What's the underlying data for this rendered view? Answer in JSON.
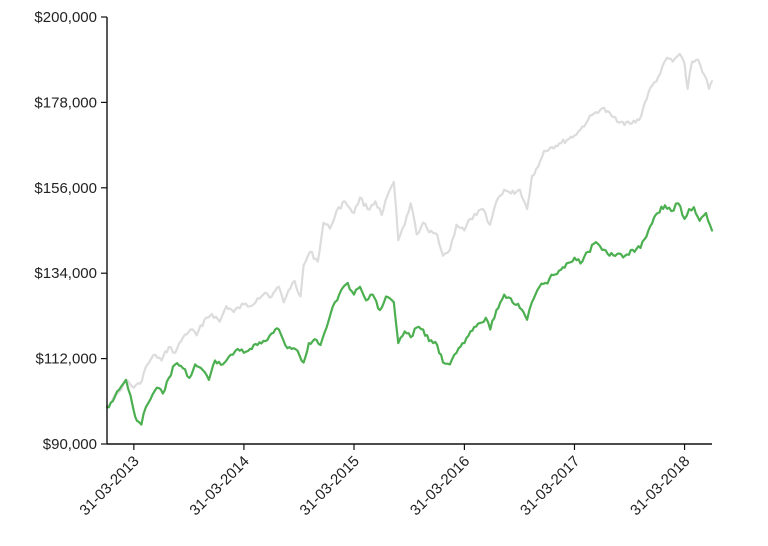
{
  "chart_data": {
    "type": "line",
    "title": "",
    "xlabel": "",
    "ylabel": "",
    "ylim": [
      90000,
      200000
    ],
    "xlim": [
      "2013-01-01",
      "2018-06-30"
    ],
    "grid": false,
    "legend": "none",
    "y_ticks": [
      {
        "value": 90000,
        "label": "$90,000"
      },
      {
        "value": 112000,
        "label": "$112,000"
      },
      {
        "value": 134000,
        "label": "$134,000"
      },
      {
        "value": 156000,
        "label": "$156,000"
      },
      {
        "value": 178000,
        "label": "$178,000"
      },
      {
        "value": 200000,
        "label": "$200,000"
      }
    ],
    "x_ticks": [
      {
        "value": "2013-03-31",
        "label": "31-03-2013"
      },
      {
        "value": "2014-03-31",
        "label": "31-03-2014"
      },
      {
        "value": "2015-03-31",
        "label": "31-03-2015"
      },
      {
        "value": "2016-03-31",
        "label": "31-03-2016"
      },
      {
        "value": "2017-03-31",
        "label": "31-03-2017"
      },
      {
        "value": "2018-03-31",
        "label": "31-03-2018"
      }
    ],
    "series": [
      {
        "color": "#dcdcdc",
        "points": [
          [
            "2013-01-01",
            100000
          ],
          [
            "2013-01-20",
            101500
          ],
          [
            "2013-02-10",
            103500
          ],
          [
            "2013-03-05",
            106500
          ],
          [
            "2013-03-31",
            104500
          ],
          [
            "2013-04-20",
            105500
          ],
          [
            "2013-05-15",
            110500
          ],
          [
            "2013-06-10",
            113000
          ],
          [
            "2013-07-01",
            111500
          ],
          [
            "2013-07-25",
            115000
          ],
          [
            "2013-08-15",
            113500
          ],
          [
            "2013-09-10",
            117500
          ],
          [
            "2013-10-05",
            119500
          ],
          [
            "2013-10-25",
            118000
          ],
          [
            "2013-11-20",
            122000
          ],
          [
            "2013-12-15",
            123500
          ],
          [
            "2014-01-10",
            121500
          ],
          [
            "2014-02-01",
            125500
          ],
          [
            "2014-02-25",
            124000
          ],
          [
            "2014-03-31",
            126000
          ],
          [
            "2014-04-20",
            125500
          ],
          [
            "2014-05-15",
            127500
          ],
          [
            "2014-06-10",
            129000
          ],
          [
            "2014-07-01",
            128000
          ],
          [
            "2014-07-25",
            130500
          ],
          [
            "2014-08-10",
            126500
          ],
          [
            "2014-08-25",
            129500
          ],
          [
            "2014-09-15",
            132000
          ],
          [
            "2014-10-05",
            128000
          ],
          [
            "2014-10-15",
            136000
          ],
          [
            "2014-11-05",
            139500
          ],
          [
            "2014-12-01",
            137000
          ],
          [
            "2014-12-20",
            147000
          ],
          [
            "2015-01-10",
            145500
          ],
          [
            "2015-02-01",
            150000
          ],
          [
            "2015-03-01",
            152500
          ],
          [
            "2015-03-31",
            149500
          ],
          [
            "2015-04-20",
            153500
          ],
          [
            "2015-05-15",
            150500
          ],
          [
            "2015-06-10",
            152500
          ],
          [
            "2015-07-01",
            149000
          ],
          [
            "2015-07-25",
            155000
          ],
          [
            "2015-08-10",
            157500
          ],
          [
            "2015-08-25",
            142500
          ],
          [
            "2015-09-15",
            146500
          ],
          [
            "2015-10-05",
            152000
          ],
          [
            "2015-10-25",
            144000
          ],
          [
            "2015-11-15",
            147000
          ],
          [
            "2015-12-05",
            144500
          ],
          [
            "2016-01-01",
            144000
          ],
          [
            "2016-01-20",
            138500
          ],
          [
            "2016-02-12",
            140000
          ],
          [
            "2016-03-05",
            146500
          ],
          [
            "2016-03-31",
            145000
          ],
          [
            "2016-04-20",
            148000
          ],
          [
            "2016-05-10",
            149000
          ],
          [
            "2016-06-01",
            150500
          ],
          [
            "2016-06-24",
            146500
          ],
          [
            "2016-07-15",
            152500
          ],
          [
            "2016-08-10",
            155500
          ],
          [
            "2016-09-01",
            154500
          ],
          [
            "2016-10-01",
            155500
          ],
          [
            "2016-10-25",
            150500
          ],
          [
            "2016-11-10",
            159000
          ],
          [
            "2016-12-01",
            161500
          ],
          [
            "2016-12-20",
            165500
          ],
          [
            "2017-01-15",
            166500
          ],
          [
            "2017-02-15",
            167500
          ],
          [
            "2017-03-31",
            169500
          ],
          [
            "2017-04-20",
            171000
          ],
          [
            "2017-05-15",
            173500
          ],
          [
            "2017-06-10",
            175500
          ],
          [
            "2017-07-01",
            176500
          ],
          [
            "2017-08-01",
            174500
          ],
          [
            "2017-09-01",
            173000
          ],
          [
            "2017-10-01",
            172500
          ],
          [
            "2017-11-01",
            173500
          ],
          [
            "2017-12-01",
            180500
          ],
          [
            "2018-01-10",
            185500
          ],
          [
            "2018-02-01",
            189500
          ],
          [
            "2018-02-20",
            188500
          ],
          [
            "2018-03-15",
            190500
          ],
          [
            "2018-03-31",
            188000
          ],
          [
            "2018-04-10",
            181500
          ],
          [
            "2018-04-25",
            188500
          ],
          [
            "2018-05-15",
            189000
          ],
          [
            "2018-06-05",
            185000
          ],
          [
            "2018-06-20",
            181500
          ],
          [
            "2018-06-30",
            183500
          ]
        ]
      },
      {
        "color": "#4caf50",
        "points": [
          [
            "2013-01-01",
            99500
          ],
          [
            "2013-01-20",
            101000
          ],
          [
            "2013-02-10",
            104000
          ],
          [
            "2013-03-05",
            106500
          ],
          [
            "2013-03-20",
            102500
          ],
          [
            "2013-03-31",
            98500
          ],
          [
            "2013-04-10",
            96000
          ],
          [
            "2013-04-25",
            95000
          ],
          [
            "2013-05-10",
            99500
          ],
          [
            "2013-05-25",
            101500
          ],
          [
            "2013-06-15",
            104500
          ],
          [
            "2013-07-05",
            103000
          ],
          [
            "2013-07-25",
            107000
          ],
          [
            "2013-08-15",
            110500
          ],
          [
            "2013-09-10",
            109500
          ],
          [
            "2013-10-01",
            107000
          ],
          [
            "2013-10-20",
            110500
          ],
          [
            "2013-11-15",
            109000
          ],
          [
            "2013-12-05",
            106500
          ],
          [
            "2013-12-25",
            111500
          ],
          [
            "2014-01-20",
            110500
          ],
          [
            "2014-02-15",
            113000
          ],
          [
            "2014-03-10",
            114500
          ],
          [
            "2014-03-31",
            113500
          ],
          [
            "2014-04-20",
            114500
          ],
          [
            "2014-05-15",
            115500
          ],
          [
            "2014-06-10",
            116500
          ],
          [
            "2014-07-01",
            118500
          ],
          [
            "2014-07-25",
            119500
          ],
          [
            "2014-08-15",
            115500
          ],
          [
            "2014-09-05",
            114500
          ],
          [
            "2014-09-25",
            114000
          ],
          [
            "2014-10-15",
            111000
          ],
          [
            "2014-11-01",
            116000
          ],
          [
            "2014-11-20",
            117000
          ],
          [
            "2014-12-10",
            115500
          ],
          [
            "2014-12-30",
            120000
          ],
          [
            "2015-01-20",
            125500
          ],
          [
            "2015-02-10",
            128500
          ],
          [
            "2015-03-10",
            131500
          ],
          [
            "2015-03-31",
            128500
          ],
          [
            "2015-04-20",
            130500
          ],
          [
            "2015-05-10",
            127000
          ],
          [
            "2015-06-01",
            128500
          ],
          [
            "2015-06-25",
            124500
          ],
          [
            "2015-07-15",
            128000
          ],
          [
            "2015-08-10",
            126500
          ],
          [
            "2015-08-25",
            116000
          ],
          [
            "2015-09-15",
            119000
          ],
          [
            "2015-10-05",
            117500
          ],
          [
            "2015-10-25",
            120000
          ],
          [
            "2015-11-15",
            119500
          ],
          [
            "2015-12-05",
            116500
          ],
          [
            "2016-01-01",
            115500
          ],
          [
            "2016-01-20",
            111000
          ],
          [
            "2016-02-12",
            110500
          ],
          [
            "2016-03-05",
            113500
          ],
          [
            "2016-03-31",
            116000
          ],
          [
            "2016-04-20",
            119000
          ],
          [
            "2016-05-15",
            121000
          ],
          [
            "2016-06-10",
            122500
          ],
          [
            "2016-06-25",
            119500
          ],
          [
            "2016-07-15",
            124500
          ],
          [
            "2016-08-10",
            128500
          ],
          [
            "2016-09-01",
            127500
          ],
          [
            "2016-10-01",
            125000
          ],
          [
            "2016-10-25",
            122000
          ],
          [
            "2016-11-10",
            126500
          ],
          [
            "2016-12-05",
            130500
          ],
          [
            "2016-12-25",
            131500
          ],
          [
            "2017-01-20",
            133500
          ],
          [
            "2017-02-20",
            135500
          ],
          [
            "2017-03-31",
            138000
          ],
          [
            "2017-04-20",
            136500
          ],
          [
            "2017-05-15",
            139500
          ],
          [
            "2017-06-10",
            142000
          ],
          [
            "2017-07-01",
            140000
          ],
          [
            "2017-07-25",
            138500
          ],
          [
            "2017-08-20",
            139000
          ],
          [
            "2017-09-15",
            138500
          ],
          [
            "2017-10-10",
            140000
          ],
          [
            "2017-11-05",
            140500
          ],
          [
            "2017-12-01",
            145000
          ],
          [
            "2018-01-01",
            149500
          ],
          [
            "2018-01-25",
            151500
          ],
          [
            "2018-02-15",
            150000
          ],
          [
            "2018-03-10",
            152000
          ],
          [
            "2018-03-31",
            148000
          ],
          [
            "2018-04-15",
            150500
          ],
          [
            "2018-05-01",
            151000
          ],
          [
            "2018-05-20",
            147500
          ],
          [
            "2018-06-10",
            149500
          ],
          [
            "2018-06-30",
            145000
          ]
        ]
      }
    ]
  }
}
